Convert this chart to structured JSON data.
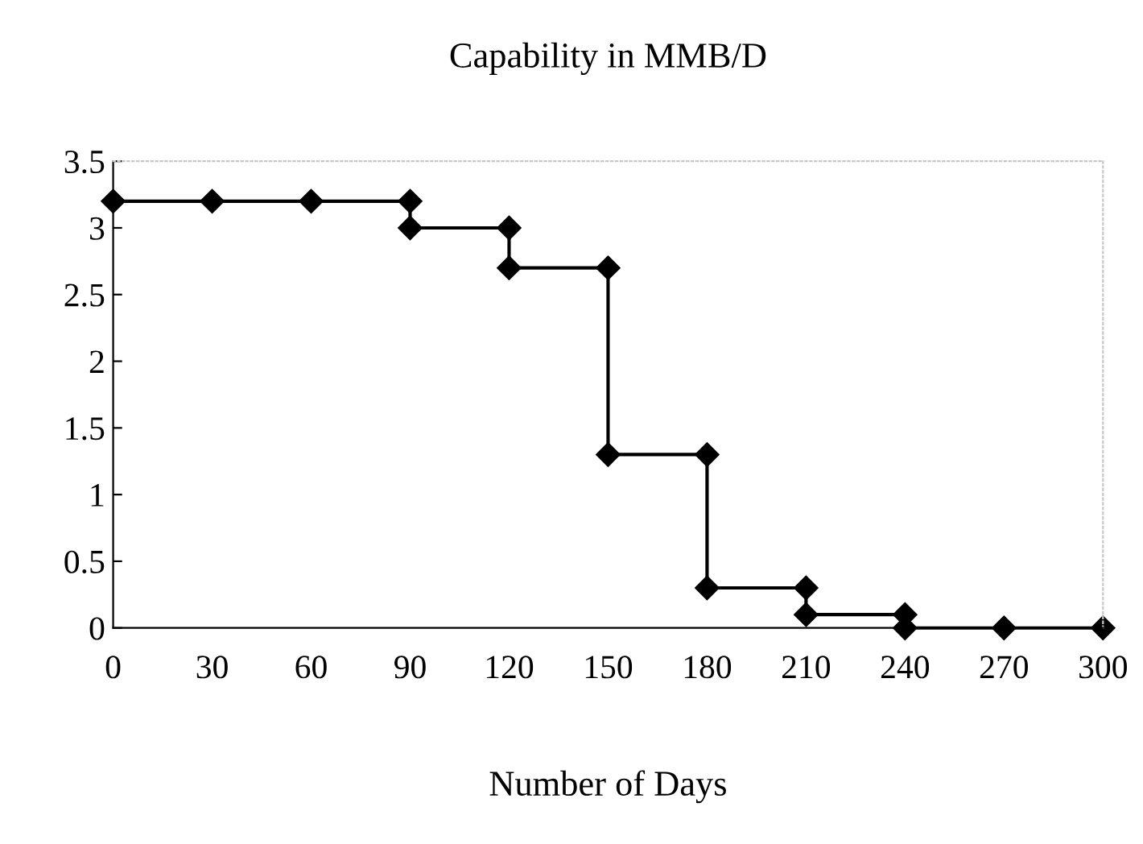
{
  "chart_data": {
    "type": "line",
    "title": "Capability in MMB/D",
    "xlabel": "Number of Days",
    "x": [
      0,
      30,
      60,
      90,
      90,
      120,
      120,
      150,
      150,
      180,
      180,
      210,
      210,
      240,
      240,
      270,
      300
    ],
    "series": [
      {
        "color": "#000000",
        "values": [
          3.2,
          3.2,
          3.2,
          3.2,
          3.0,
          3.0,
          2.7,
          2.7,
          1.3,
          1.3,
          0.3,
          0.3,
          0.1,
          0.1,
          0,
          0,
          0
        ]
      }
    ],
    "xlim": [
      0,
      300
    ],
    "xticks": [
      0,
      30,
      60,
      90,
      120,
      150,
      180,
      210,
      240,
      270,
      300
    ],
    "ylim": [
      0,
      3.5
    ],
    "yticks": [
      0,
      0.5,
      1,
      1.5,
      2,
      2.5,
      3,
      3.5
    ],
    "grid": false,
    "marker": "diamond",
    "line_style": "solid",
    "legend": false
  }
}
